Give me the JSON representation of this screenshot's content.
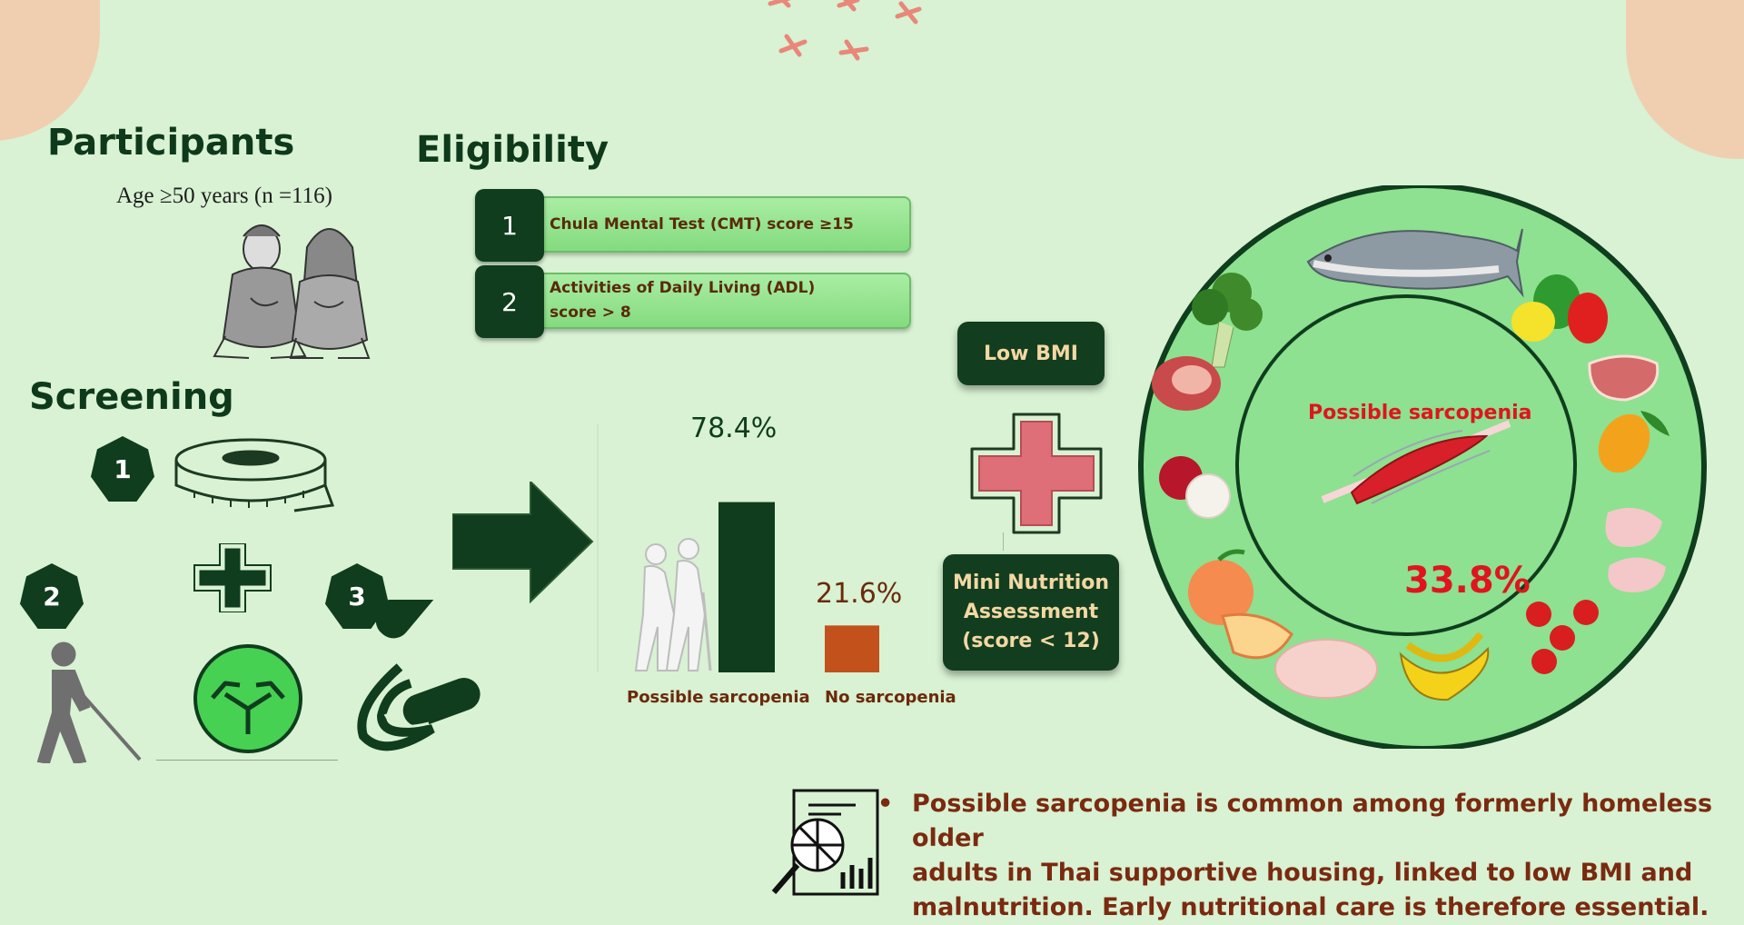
{
  "participants": {
    "heading": "Participants",
    "age_line": "Age ≥50 years (n =116)"
  },
  "eligibility": {
    "heading": "Eligibility",
    "items": [
      {
        "number": "1",
        "text": "Chula Mental Test (CMT) score ≥15"
      },
      {
        "number": "2",
        "line1": "Activities of Daily Living (ADL)",
        "line2": "score > 8"
      }
    ]
  },
  "screening": {
    "heading": "Screening",
    "badges": [
      "1",
      "2",
      "3"
    ],
    "icons": [
      "measuring-tape-icon",
      "walking-cane-person-icon",
      "balance-arrows-icon",
      "hand-grip-icon"
    ]
  },
  "chart_data": {
    "type": "bar",
    "categories": [
      "Possible sarcopenia",
      "No sarcopenia"
    ],
    "values": [
      78.4,
      21.6
    ],
    "data_labels": [
      "78.4%",
      "21.6%"
    ],
    "colors": [
      "#0f3d1d",
      "#c2511c"
    ],
    "ylim": [
      0,
      100
    ]
  },
  "factors": {
    "low_bmi": "Low BMI",
    "mna_line1": "Mini Nutrition",
    "mna_line2": "Assessment",
    "mna_line3": "(score < 12)"
  },
  "circle": {
    "label": "Possible sarcopenia",
    "percent": "33.8%",
    "foods": [
      "fish-icon",
      "broccoli-icon",
      "peppers-icon",
      "meat-icon",
      "steak-icon",
      "mango-icon",
      "lychee-icon",
      "chicken-legs-icon",
      "peach-icon",
      "tomatoes-icon",
      "chicken-icon",
      "banana-icon"
    ]
  },
  "conclusion": {
    "bullet": "•",
    "line1": "Possible sarcopenia is common among formerly homeless older",
    "line2": "adults in Thai supportive housing, linked to low BMI and",
    "line3": "malnutrition. Early nutritional care is therefore essential."
  },
  "colors": {
    "background": "#d8f2d3",
    "dark_green": "#0f3d1d",
    "accent_orange": "#c2511c",
    "red_text": "#e0141e",
    "brown_text": "#7a2a10"
  }
}
